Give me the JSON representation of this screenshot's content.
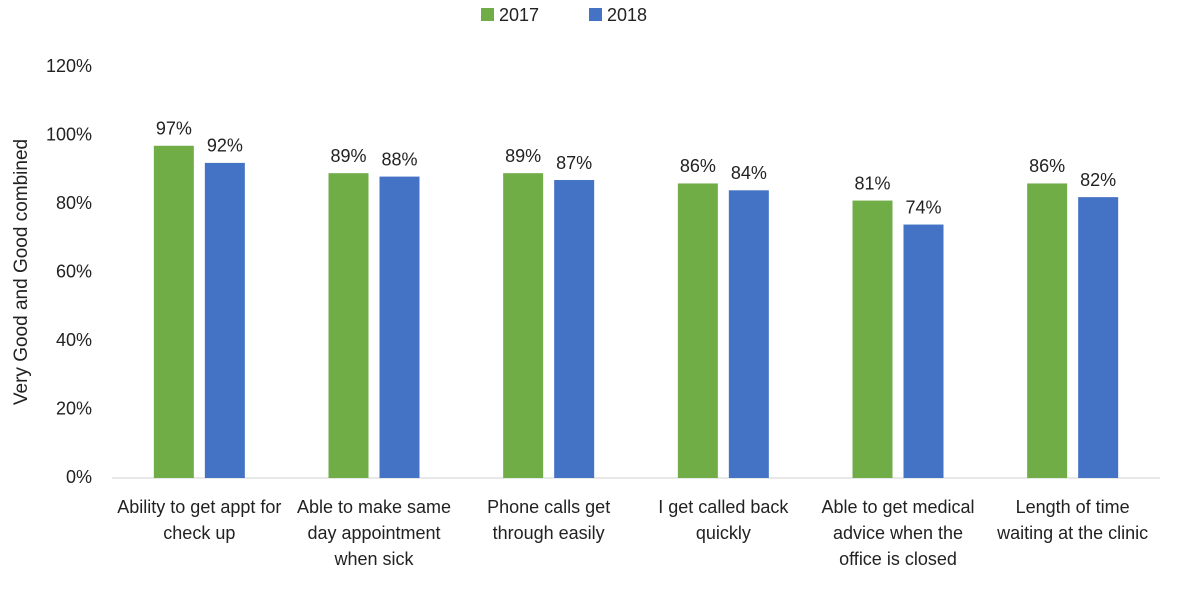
{
  "chart_data": {
    "type": "bar",
    "y_label": "Very Good and Good combined",
    "categories": [
      "Ability to get appt for check up",
      "Able to make same day appointment when sick",
      "Phone calls get through easily",
      "I get called back quickly",
      "Able to get medical advice when the office is closed",
      "Length of time waiting at the clinic"
    ],
    "series": [
      {
        "name": "2017",
        "color": "#70ad47",
        "values": [
          97,
          89,
          89,
          86,
          81,
          86
        ],
        "value_labels": [
          "97%",
          "89%",
          "89%",
          "86%",
          "81%",
          "86%"
        ]
      },
      {
        "name": "2018",
        "color": "#4472c4",
        "values": [
          92,
          88,
          87,
          84,
          74,
          82
        ],
        "value_labels": [
          "92%",
          "88%",
          "87%",
          "84%",
          "74%",
          "82%"
        ]
      }
    ],
    "ylim": [
      0,
      120
    ],
    "yticks": [
      {
        "value": 0,
        "label": "0%"
      },
      {
        "value": 20,
        "label": "20%"
      },
      {
        "value": 40,
        "label": "40%"
      },
      {
        "value": 60,
        "label": "60%"
      },
      {
        "value": 80,
        "label": "80%"
      },
      {
        "value": 100,
        "label": "100%"
      },
      {
        "value": 120,
        "label": "120%"
      }
    ],
    "legend": "top"
  }
}
